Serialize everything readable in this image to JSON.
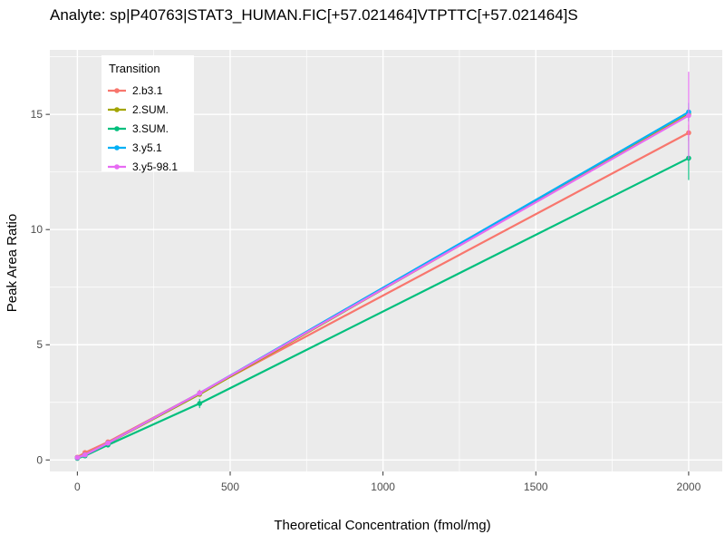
{
  "page": {
    "background": "#FFFFFF"
  },
  "chart_data": {
    "type": "line",
    "title": "Analyte: sp|P40763|STAT3_HUMAN.FIC[+57.021464]VTPTTC[+57.021464]S",
    "xlabel": "Theoretical Concentration (fmol/mg)",
    "ylabel": "Peak Area Ratio",
    "legend_title": "Transition",
    "legend_position": "top-left-inside",
    "panel_color": "#EBEBEB",
    "grid_color": "#FFFFFF",
    "tick_color": "#333333",
    "xlim": [
      -90,
      2110
    ],
    "ylim": [
      -0.5,
      17.8
    ],
    "x_ticks": [
      0,
      500,
      1000,
      1500,
      2000
    ],
    "y_ticks": [
      0,
      5,
      10,
      15
    ],
    "x_minor": [
      250,
      750,
      1250,
      1750
    ],
    "y_minor": [
      2.5,
      7.5,
      12.5,
      17.5
    ],
    "x": [
      0,
      25,
      100,
      400,
      2000
    ],
    "series": [
      {
        "name": "2.b3.1",
        "color": "#F8766D",
        "values": [
          0.12,
          0.32,
          0.78,
          2.9,
          14.2
        ],
        "error": [
          0,
          0,
          0,
          0.15,
          0.35
        ]
      },
      {
        "name": "2.SUM.",
        "color": "#A3A500",
        "values": [
          0.1,
          0.22,
          0.72,
          2.85,
          15.0
        ],
        "error": [
          0,
          0,
          0,
          0.1,
          0.3
        ]
      },
      {
        "name": "3.SUM.",
        "color": "#00BF7D",
        "values": [
          0.07,
          0.18,
          0.65,
          2.45,
          13.1
        ],
        "error": [
          0,
          0,
          0,
          0.2,
          0.95
        ]
      },
      {
        "name": "3.y5.1",
        "color": "#00B0F6",
        "values": [
          0.1,
          0.22,
          0.73,
          2.9,
          15.1
        ],
        "error": [
          0,
          0,
          0,
          0.1,
          0.4
        ]
      },
      {
        "name": "3.y5-98.1",
        "color": "#E76BF3",
        "values": [
          0.1,
          0.22,
          0.73,
          2.9,
          14.95
        ],
        "error": [
          0,
          0,
          0,
          0.1,
          1.9
        ]
      }
    ]
  }
}
